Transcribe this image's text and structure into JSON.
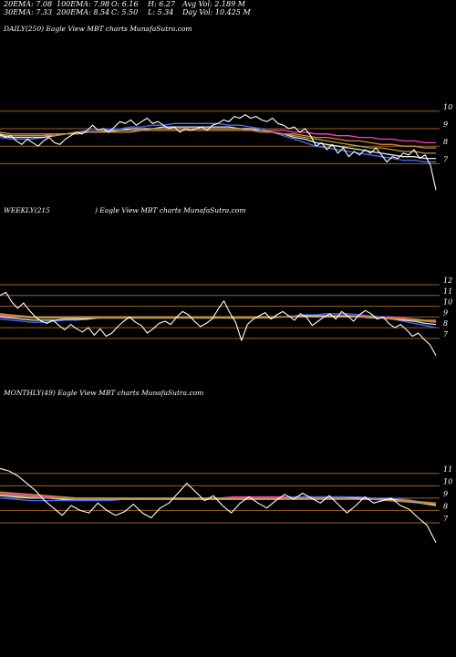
{
  "stats": {
    "ema20": "20EMA: 7.08",
    "ema100": "100EMA: 7.98",
    "open": "O: 6.16",
    "high": "H: 6.27",
    "avg_vol": "Avg Vol: 2.189 M",
    "ema30": "30EMA: 7.33",
    "ema200": "200EMA: 8.54",
    "close": "C: 5.50",
    "low": "L: 5.34",
    "day_vol": "Day Vol: 10.425 M"
  },
  "panels": {
    "daily_label": "DAILY(250) Eagle  View  MBT charts MunafaSutra.com",
    "weekly_label_a": "WEEKLY(215",
    "weekly_label_b": ") Eagle  View  MBT charts MunafaSutra.com",
    "monthly_label": "MONTHLY(49) Eagle  View  MBT charts MunafaSutra.com"
  },
  "colors": {
    "background": "#000000",
    "price": "#ffffff",
    "ema_magenta": "#ff3dbe",
    "ema_blue": "#4a6bff",
    "ema_light": "#e6e6e6",
    "ema_olive": "#a5a050",
    "ema_orange": "#d48a2a",
    "level_line": "#a0601f"
  },
  "chart_data": [
    {
      "type": "line",
      "name": "daily",
      "y_ticks": [
        10,
        9,
        8,
        7
      ],
      "horizontal_levels": [
        10,
        9,
        8,
        7
      ],
      "ylim": [
        5.3,
        10.2
      ],
      "series": [
        {
          "role": "price",
          "color": "#ffffff",
          "values": [
            8.7,
            8.5,
            8.6,
            8.3,
            8.1,
            8.4,
            8.2,
            8.0,
            8.3,
            8.5,
            8.2,
            8.1,
            8.4,
            8.6,
            8.8,
            8.7,
            8.9,
            9.2,
            8.9,
            9.0,
            8.8,
            9.1,
            9.4,
            9.3,
            9.5,
            9.2,
            9.4,
            9.6,
            9.3,
            9.4,
            9.2,
            9.0,
            9.1,
            8.8,
            9.0,
            8.9,
            9.0,
            9.1,
            8.9,
            9.2,
            9.3,
            9.5,
            9.4,
            9.7,
            9.6,
            9.8,
            9.6,
            9.7,
            9.5,
            9.4,
            9.6,
            9.3,
            9.2,
            9.0,
            9.1,
            8.8,
            9.0,
            8.6,
            8.0,
            8.2,
            7.8,
            8.1,
            7.6,
            7.9,
            7.4,
            7.7,
            7.5,
            7.8,
            7.6,
            7.9,
            7.5,
            7.1,
            7.4,
            7.3,
            7.6,
            7.5,
            7.8,
            7.3,
            7.5,
            6.9,
            5.5
          ]
        },
        {
          "role": "ema",
          "color": "#ff3dbe",
          "values": [
            8.6,
            8.6,
            8.6,
            8.6,
            8.6,
            8.7,
            8.7,
            8.7,
            8.8,
            8.8,
            8.8,
            8.9,
            8.9,
            8.9,
            9.0,
            9.0,
            9.0,
            9.0,
            9.0,
            9.0,
            9.0,
            9.0,
            9.0,
            9.0,
            8.9,
            8.9,
            8.9,
            8.8,
            8.8,
            8.7,
            8.7,
            8.6,
            8.6,
            8.5,
            8.5,
            8.4,
            8.4,
            8.3,
            8.3,
            8.2,
            8.2
          ]
        },
        {
          "role": "ema",
          "color": "#4a6bff",
          "values": [
            8.5,
            8.4,
            8.4,
            8.4,
            8.5,
            8.6,
            8.7,
            8.8,
            8.9,
            8.9,
            9.0,
            9.0,
            9.1,
            9.1,
            9.2,
            9.2,
            9.3,
            9.3,
            9.3,
            9.3,
            9.3,
            9.2,
            9.2,
            9.1,
            9.0,
            8.8,
            8.6,
            8.4,
            8.2,
            8.0,
            7.9,
            7.8,
            7.7,
            7.6,
            7.5,
            7.4,
            7.3,
            7.2,
            7.2,
            7.1,
            7.1
          ]
        },
        {
          "role": "ema",
          "color": "#e6e6e6",
          "values": [
            8.6,
            8.5,
            8.5,
            8.5,
            8.5,
            8.6,
            8.7,
            8.7,
            8.8,
            8.8,
            8.9,
            8.9,
            9.0,
            9.0,
            9.0,
            9.1,
            9.1,
            9.1,
            9.1,
            9.1,
            9.1,
            9.1,
            9.0,
            9.0,
            8.9,
            8.8,
            8.7,
            8.5,
            8.4,
            8.2,
            8.1,
            8.0,
            7.9,
            7.8,
            7.7,
            7.6,
            7.5,
            7.4,
            7.4,
            7.3,
            7.3
          ]
        },
        {
          "role": "ema",
          "color": "#a5a050",
          "values": [
            8.7,
            8.6,
            8.6,
            8.6,
            8.6,
            8.6,
            8.7,
            8.7,
            8.8,
            8.8,
            8.8,
            8.9,
            8.9,
            8.9,
            9.0,
            9.0,
            9.0,
            9.0,
            9.0,
            9.0,
            9.0,
            9.0,
            9.0,
            8.9,
            8.9,
            8.8,
            8.7,
            8.6,
            8.5,
            8.4,
            8.3,
            8.2,
            8.1,
            8.0,
            7.9,
            7.9,
            7.8,
            7.7,
            7.7,
            7.6,
            7.6
          ]
        },
        {
          "role": "ema",
          "color": "#d48a2a",
          "values": [
            8.8,
            8.7,
            8.7,
            8.7,
            8.7,
            8.7,
            8.7,
            8.8,
            8.8,
            8.8,
            8.8,
            8.8,
            8.8,
            8.9,
            8.9,
            8.9,
            8.9,
            8.9,
            8.9,
            8.9,
            8.9,
            8.9,
            8.9,
            8.9,
            8.8,
            8.8,
            8.7,
            8.7,
            8.6,
            8.5,
            8.5,
            8.4,
            8.3,
            8.3,
            8.2,
            8.1,
            8.1,
            8.0,
            8.0,
            7.9,
            7.9
          ]
        }
      ]
    },
    {
      "type": "line",
      "name": "weekly",
      "y_ticks": [
        12,
        11,
        10,
        9,
        8,
        7
      ],
      "horizontal_levels": [
        12,
        11,
        10,
        9,
        8,
        7
      ],
      "ylim": [
        5.2,
        12.6
      ],
      "series": [
        {
          "role": "price",
          "color": "#ffffff",
          "values": [
            11.0,
            11.3,
            10.4,
            9.8,
            10.3,
            9.6,
            9.0,
            8.6,
            8.4,
            8.7,
            8.2,
            7.8,
            8.3,
            7.9,
            7.6,
            8.0,
            7.3,
            7.9,
            7.2,
            7.5,
            8.1,
            8.6,
            9.0,
            8.5,
            8.2,
            7.5,
            7.9,
            8.4,
            8.6,
            8.3,
            9.0,
            9.5,
            9.2,
            8.6,
            8.1,
            8.4,
            8.8,
            9.7,
            10.5,
            9.4,
            8.5,
            6.8,
            8.3,
            8.8,
            9.1,
            9.4,
            8.8,
            9.2,
            9.5,
            9.1,
            8.7,
            9.3,
            9.0,
            8.2,
            8.6,
            9.0,
            9.3,
            8.8,
            9.5,
            9.1,
            8.6,
            9.2,
            9.6,
            9.3,
            8.8,
            9.0,
            8.4,
            8.0,
            8.3,
            7.8,
            7.2,
            7.5,
            6.9,
            6.4,
            5.4
          ]
        },
        {
          "role": "ema",
          "color": "#ff3dbe",
          "values": [
            9.1,
            9.0,
            9.0,
            9.0,
            9.0,
            9.0,
            9.0,
            9.0,
            9.0,
            9.0,
            9.0,
            9.0,
            9.0,
            9.0,
            9.0,
            9.0,
            9.0,
            9.0,
            9.0,
            9.0,
            9.0,
            9.0,
            9.0,
            9.0,
            9.0,
            9.0,
            9.0,
            9.1,
            9.1,
            9.1,
            9.1,
            9.1,
            9.1,
            9.1,
            9.0,
            9.0,
            9.0,
            8.9,
            8.8,
            8.7,
            8.6
          ]
        },
        {
          "role": "ema",
          "color": "#4a6bff",
          "values": [
            8.8,
            8.7,
            8.6,
            8.5,
            8.5,
            8.6,
            8.7,
            8.7,
            8.8,
            8.9,
            8.9,
            8.9,
            9.0,
            9.0,
            9.0,
            8.9,
            8.9,
            9.0,
            9.0,
            9.0,
            9.0,
            8.9,
            8.9,
            8.9,
            9.0,
            9.0,
            9.0,
            9.1,
            9.2,
            9.2,
            9.3,
            9.3,
            9.3,
            9.2,
            9.1,
            9.0,
            8.8,
            8.6,
            8.4,
            8.2,
            8.0
          ]
        },
        {
          "role": "ema",
          "color": "#e6e6e6",
          "values": [
            9.0,
            8.9,
            8.8,
            8.7,
            8.7,
            8.7,
            8.8,
            8.8,
            8.8,
            8.9,
            8.9,
            8.9,
            8.9,
            8.9,
            8.9,
            8.9,
            8.9,
            8.9,
            8.9,
            8.9,
            8.9,
            8.9,
            8.9,
            8.9,
            9.0,
            9.0,
            9.0,
            9.0,
            9.1,
            9.1,
            9.1,
            9.1,
            9.1,
            9.0,
            9.0,
            8.9,
            8.8,
            8.7,
            8.6,
            8.4,
            8.3
          ]
        },
        {
          "role": "ema",
          "color": "#a5a050",
          "values": [
            9.2,
            9.1,
            9.0,
            8.9,
            8.9,
            8.9,
            8.9,
            8.9,
            8.9,
            8.9,
            8.9,
            8.9,
            8.9,
            8.9,
            8.9,
            8.9,
            8.9,
            8.9,
            8.9,
            8.9,
            8.9,
            8.9,
            8.9,
            8.9,
            8.9,
            8.9,
            9.0,
            9.0,
            9.0,
            9.0,
            9.0,
            9.0,
            9.0,
            9.0,
            8.9,
            8.9,
            8.8,
            8.8,
            8.7,
            8.6,
            8.5
          ]
        },
        {
          "role": "ema",
          "color": "#d48a2a",
          "values": [
            9.3,
            9.2,
            9.1,
            9.0,
            9.0,
            9.0,
            9.0,
            9.0,
            9.0,
            9.0,
            9.0,
            9.0,
            9.0,
            9.0,
            9.0,
            9.0,
            9.0,
            9.0,
            9.0,
            9.0,
            9.0,
            9.0,
            9.0,
            9.0,
            9.0,
            9.0,
            9.0,
            9.0,
            9.0,
            9.0,
            9.0,
            9.0,
            9.0,
            9.0,
            9.0,
            8.9,
            8.9,
            8.8,
            8.8,
            8.7,
            8.7
          ]
        }
      ]
    },
    {
      "type": "line",
      "name": "monthly",
      "y_ticks": [
        11,
        10,
        9,
        8,
        7
      ],
      "horizontal_levels": [
        11,
        10,
        9,
        8,
        7
      ],
      "ylim": [
        5.0,
        11.8
      ],
      "series": [
        {
          "role": "price",
          "color": "#ffffff",
          "values": [
            11.4,
            11.2,
            10.8,
            10.2,
            9.6,
            8.8,
            8.2,
            7.6,
            8.4,
            8.0,
            7.8,
            8.6,
            8.0,
            7.6,
            7.9,
            8.5,
            7.8,
            7.4,
            8.2,
            8.6,
            9.4,
            10.2,
            9.5,
            8.8,
            9.2,
            8.4,
            7.8,
            8.6,
            9.1,
            8.6,
            8.2,
            8.8,
            9.3,
            8.9,
            9.4,
            9.0,
            8.6,
            9.2,
            8.5,
            7.8,
            8.4,
            9.1,
            8.6,
            8.8,
            9.0,
            8.4,
            8.1,
            7.4,
            6.8,
            5.4
          ]
        },
        {
          "role": "ema",
          "color": "#ff3dbe",
          "values": [
            9.4,
            9.3,
            9.2,
            9.1,
            9.1,
            9.0,
            9.0,
            9.0,
            9.0,
            9.0,
            9.0,
            9.0,
            9.0,
            9.0,
            9.0,
            9.1,
            9.1,
            9.1,
            9.1,
            9.1,
            9.1,
            9.1,
            9.1,
            9.0,
            9.0,
            8.9,
            8.8,
            8.7,
            8.6
          ]
        },
        {
          "role": "ema",
          "color": "#4a6bff",
          "values": [
            9.0,
            8.9,
            8.8,
            8.8,
            8.8,
            8.8,
            8.8,
            8.8,
            8.9,
            8.9,
            9.0,
            9.0,
            9.0,
            9.0,
            9.0,
            9.0,
            9.0,
            9.0,
            9.0,
            9.1,
            9.1,
            9.1,
            9.1,
            9.1,
            9.0,
            9.0,
            8.9,
            8.7,
            8.5
          ]
        },
        {
          "role": "ema",
          "color": "#e6e6e6",
          "values": [
            9.2,
            9.1,
            9.0,
            9.0,
            8.9,
            8.9,
            8.9,
            8.9,
            8.9,
            8.9,
            8.9,
            8.9,
            8.9,
            8.9,
            8.9,
            8.9,
            8.9,
            8.9,
            8.9,
            9.0,
            9.0,
            9.0,
            9.0,
            9.0,
            8.9,
            8.9,
            8.8,
            8.6,
            8.4
          ]
        },
        {
          "role": "ema",
          "color": "#a5a050",
          "values": [
            9.3,
            9.2,
            9.1,
            9.0,
            9.0,
            8.9,
            8.9,
            8.9,
            8.9,
            8.9,
            8.9,
            8.9,
            8.9,
            8.9,
            8.9,
            8.9,
            8.9,
            8.9,
            8.9,
            8.9,
            8.9,
            8.9,
            8.9,
            8.9,
            8.9,
            8.8,
            8.7,
            8.6,
            8.5
          ]
        },
        {
          "role": "ema",
          "color": "#d48a2a",
          "values": [
            9.5,
            9.4,
            9.3,
            9.2,
            9.1,
            9.0,
            9.0,
            9.0,
            9.0,
            9.0,
            9.0,
            9.0,
            9.0,
            9.0,
            9.0,
            9.0,
            9.0,
            9.0,
            9.0,
            9.0,
            9.0,
            9.0,
            9.0,
            8.9,
            8.9,
            8.8,
            8.8,
            8.7,
            8.6
          ]
        }
      ]
    }
  ]
}
